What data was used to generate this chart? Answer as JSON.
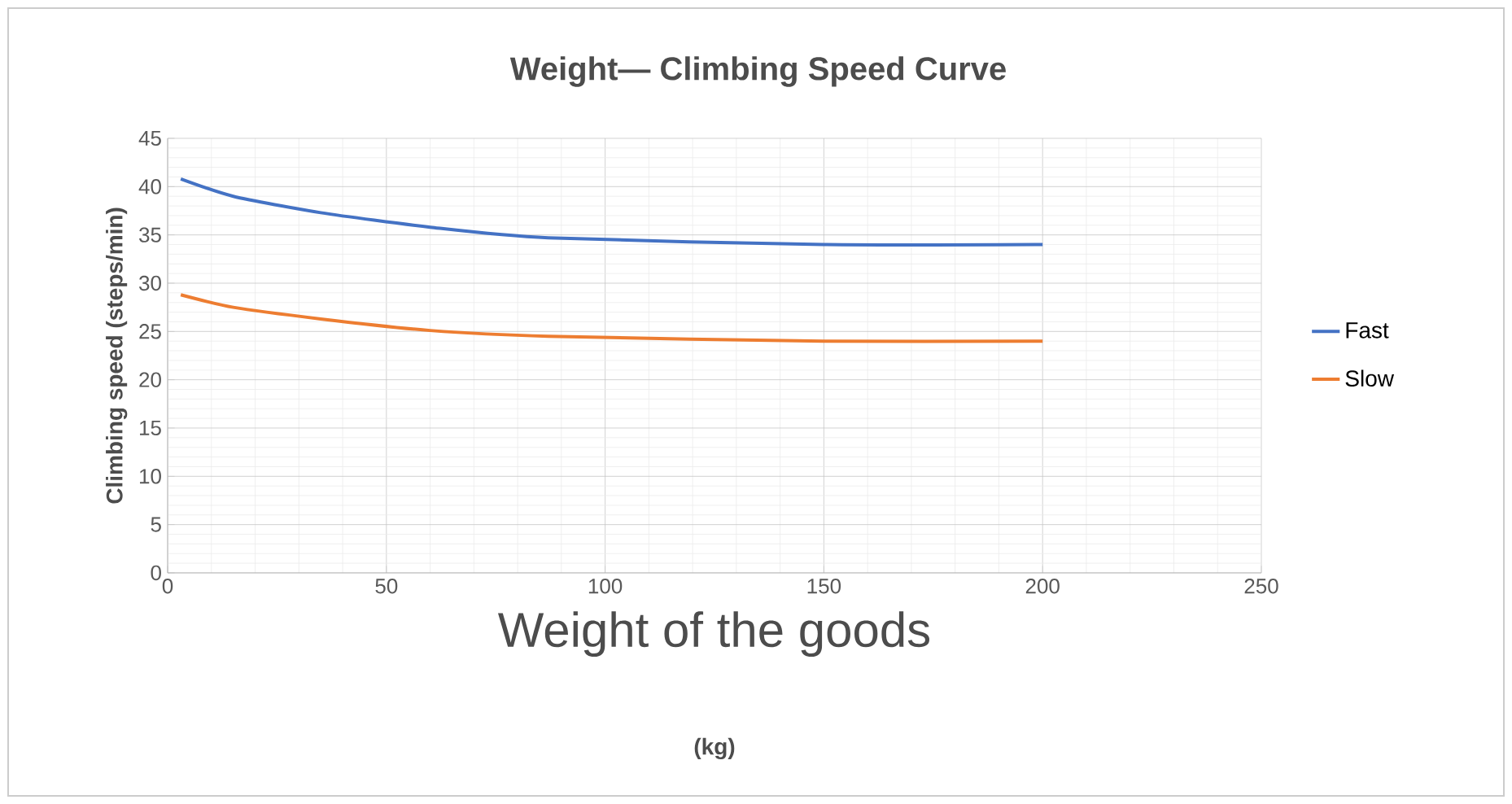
{
  "chart_data": {
    "type": "line",
    "title": "Weight— Climbing Speed Curve",
    "xlabel": "Weight of the goods",
    "ylabel": "Climbing speed    (steps/min)",
    "annotations": [
      "(kg)"
    ],
    "x": [
      3,
      15,
      35,
      60,
      87,
      150,
      200
    ],
    "series": [
      {
        "name": "Fast",
        "color": "#4472c4",
        "values": [
          40.8,
          39,
          37.3,
          35.8,
          34.7,
          34,
          34
        ]
      },
      {
        "name": "Slow",
        "color": "#ed7d31",
        "values": [
          28.8,
          27.5,
          26.3,
          25.1,
          24.5,
          24,
          24
        ]
      }
    ],
    "xlim": [
      0,
      250
    ],
    "xticks": [
      0,
      50,
      100,
      150,
      200,
      250
    ],
    "ylim": [
      0,
      45
    ],
    "yticks": [
      0,
      5,
      10,
      15,
      20,
      25,
      30,
      35,
      40,
      45
    ],
    "grid": true,
    "legend": "right",
    "marker": "none",
    "line_style": "solid"
  }
}
